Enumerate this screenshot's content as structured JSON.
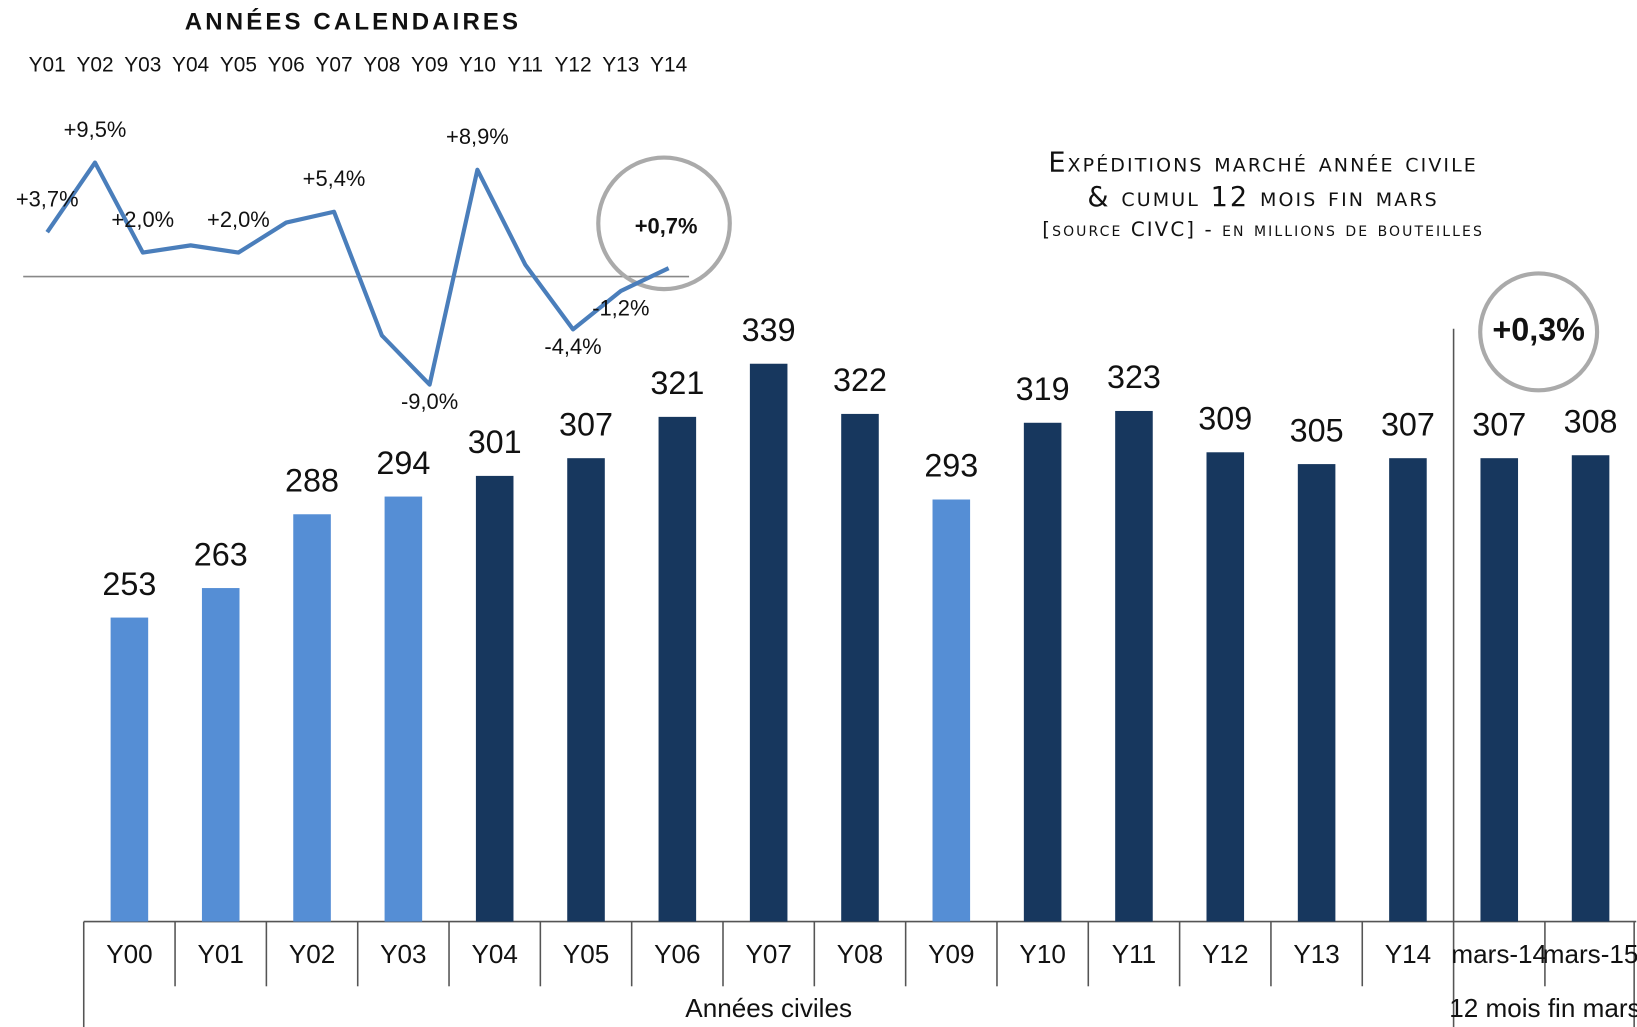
{
  "chart_data": [
    {
      "type": "bar",
      "title_lines": [
        "Expéditions marché année civile",
        "& cumul 12 mois fin mars",
        "[source CIVC] - en millions de bouteilles"
      ],
      "categories": [
        "Y00",
        "Y01",
        "Y02",
        "Y03",
        "Y04",
        "Y05",
        "Y06",
        "Y07",
        "Y08",
        "Y09",
        "Y10",
        "Y11",
        "Y12",
        "Y13",
        "Y14",
        "mars-14",
        "mars-15"
      ],
      "values": [
        253,
        263,
        288,
        294,
        301,
        307,
        321,
        339,
        322,
        293,
        319,
        323,
        309,
        305,
        307,
        307,
        308
      ],
      "colors": [
        "#558ed5",
        "#558ed5",
        "#558ed5",
        "#558ed5",
        "#17375e",
        "#17375e",
        "#17375e",
        "#17375e",
        "#17375e",
        "#558ed5",
        "#17375e",
        "#17375e",
        "#17375e",
        "#17375e",
        "#17375e",
        "#17375e",
        "#17375e"
      ],
      "groups": [
        "Années civiles",
        "12 mois fin mars"
      ],
      "annotation": "+0,3%",
      "ylim": [
        150,
        400
      ]
    },
    {
      "type": "line",
      "title": "ANNÉES CALENDAIRES",
      "categories": [
        "Y01",
        "Y02",
        "Y03",
        "Y04",
        "Y05",
        "Y06",
        "Y07",
        "Y08",
        "Y09",
        "Y10",
        "Y11",
        "Y12",
        "Y13",
        "Y14"
      ],
      "values": [
        3.7,
        9.5,
        2.0,
        2.6,
        2.0,
        4.5,
        5.4,
        -4.9,
        -9.0,
        8.9,
        1.0,
        -4.4,
        -1.2,
        0.7
      ],
      "value_labels": [
        "+3,7%",
        "+9,5%",
        "+2,0%",
        null,
        "+2,0%",
        null,
        "+5,4%",
        null,
        "-9,0%",
        "+8,9%",
        null,
        "-4,4%",
        "-1,2%",
        "+0,7%"
      ],
      "color": "#4a7ebb"
    }
  ]
}
